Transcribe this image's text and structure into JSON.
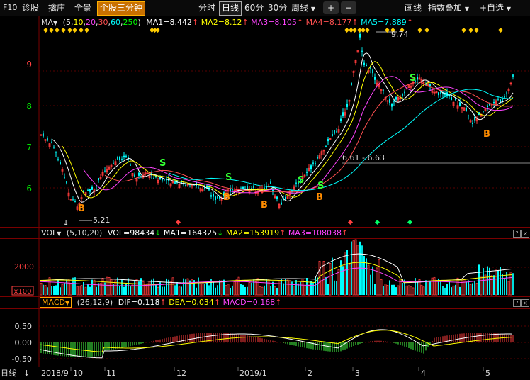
{
  "toolbar": {
    "items": [
      "F10",
      "诊股",
      "擒庄",
      "全景",
      "个股三分钟"
    ],
    "periods": [
      "分时",
      "日线",
      "60分",
      "30分",
      "周线"
    ],
    "plus": "+",
    "minus": "−",
    "draw": "画线",
    "overlay": "指数叠加",
    "favorite": "+自选",
    "dropdown_icon": "chevron-down-icon"
  },
  "ma_bar": {
    "name": "MA",
    "params_open": "(",
    "params": [
      "5",
      "10",
      "20",
      "30",
      "60",
      "250"
    ],
    "params_close": ")",
    "ma1": "MA1=8.442",
    "ma2": "MA2=8.12",
    "ma3": "MA3=8.105",
    "ma4": "MA4=8.177",
    "ma5": "MA5=7.889",
    "arrow": "↑",
    "colors": {
      "ma1": "#ffffff",
      "ma2": "#ffff00",
      "ma3": "#ff00ff",
      "ma4": "#ff4040",
      "ma5": "#00ffff"
    }
  },
  "price_axis": [
    "9",
    "8",
    "7",
    "6"
  ],
  "annotations": {
    "high": "9.74",
    "low": "5.21",
    "range": "6.61 - 6.63",
    "buy": "B",
    "sell": "S"
  },
  "vol_bar": {
    "name": "VOL",
    "params": "(5,10,20)",
    "vol": "VOL=98434",
    "ma1": "MA1=164325",
    "ma2": "MA2=153919",
    "ma3": "MA3=108038",
    "down": "↓",
    "up": "↑"
  },
  "vol_axis": {
    "value": "2000",
    "unit": "x100"
  },
  "macd_bar": {
    "name": "MACD",
    "params": "(26,12,9)",
    "dif": "DIF=0.118",
    "dea": "DEA=0.034",
    "macd": "MACD=0.168",
    "up": "↑"
  },
  "macd_axis": [
    "0.50",
    "0.00",
    "-0.50"
  ],
  "date_axis": {
    "period_label": "日线",
    "labels": [
      "2018/9",
      "10",
      "11",
      "12",
      "2019/1",
      "2",
      "3",
      "4",
      "5"
    ]
  },
  "panel_buttons": {
    "help": "?",
    "close": "×"
  }
}
